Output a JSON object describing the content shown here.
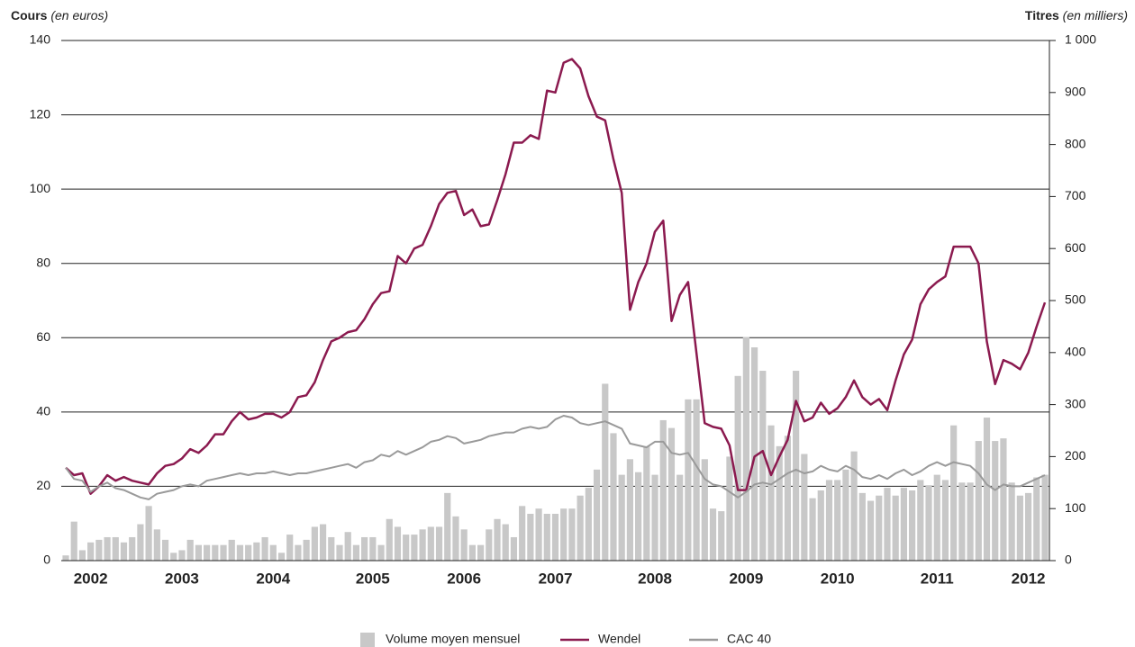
{
  "chart_data": {
    "type": "bar",
    "y_label": "Cours",
    "y_label_note": "(en euros)",
    "y2_label": "Titres",
    "y2_label_note": "(en milliers)",
    "categories": [
      null,
      null,
      null,
      "2002",
      null,
      null,
      null,
      null,
      null,
      null,
      null,
      null,
      null,
      null,
      "2003",
      null,
      null,
      null,
      null,
      null,
      null,
      null,
      null,
      null,
      null,
      "2004",
      null,
      null,
      null,
      null,
      null,
      null,
      null,
      null,
      null,
      null,
      null,
      "2005",
      null,
      null,
      null,
      null,
      null,
      null,
      null,
      null,
      null,
      null,
      "2006",
      null,
      null,
      null,
      null,
      null,
      null,
      null,
      null,
      null,
      null,
      "2007",
      null,
      null,
      null,
      null,
      null,
      null,
      null,
      null,
      null,
      null,
      null,
      "2008",
      null,
      null,
      null,
      null,
      null,
      null,
      null,
      null,
      null,
      null,
      "2009",
      null,
      null,
      null,
      null,
      null,
      null,
      null,
      null,
      null,
      null,
      "2010",
      null,
      null,
      null,
      null,
      null,
      null,
      null,
      null,
      null,
      null,
      null,
      "2011",
      null,
      null,
      null,
      null,
      null,
      null,
      null,
      null,
      null,
      null,
      "2012",
      null,
      null
    ],
    "series": [
      {
        "name": "Volume moyen mensuel",
        "type": "bar",
        "axis": "y2",
        "color": "#c8c8c8",
        "values": [
          10,
          75,
          20,
          35,
          40,
          45,
          45,
          35,
          45,
          70,
          105,
          60,
          40,
          15,
          20,
          40,
          30,
          30,
          30,
          30,
          40,
          30,
          30,
          35,
          45,
          30,
          15,
          50,
          30,
          40,
          65,
          70,
          45,
          30,
          55,
          30,
          45,
          45,
          30,
          80,
          65,
          50,
          50,
          60,
          65,
          65,
          130,
          85,
          60,
          30,
          30,
          60,
          80,
          70,
          45,
          105,
          90,
          100,
          90,
          90,
          100,
          100,
          125,
          140,
          175,
          340,
          245,
          165,
          195,
          170,
          220,
          165,
          270,
          255,
          165,
          310,
          310,
          195,
          100,
          95,
          200,
          355,
          430,
          410,
          365,
          260,
          220,
          240,
          365,
          205,
          120,
          135,
          155,
          155,
          175,
          210,
          130,
          115,
          125,
          140,
          125,
          140,
          135,
          155,
          145,
          165,
          155,
          260,
          150,
          150,
          230,
          275,
          230,
          235,
          150,
          125,
          130,
          160,
          165
        ]
      },
      {
        "name": "Wendel",
        "type": "line",
        "color": "#8b1a4f",
        "values": [
          25,
          23,
          23.5,
          18,
          20,
          23,
          21.5,
          22.5,
          21.5,
          21,
          20.5,
          23.5,
          25.5,
          26,
          27.5,
          30,
          29,
          31,
          34,
          34,
          37.5,
          40,
          38,
          38.5,
          39.5,
          39.5,
          38.5,
          40,
          44,
          44.5,
          48,
          54,
          59,
          60,
          61.5,
          62,
          65,
          69,
          72,
          72.5,
          82,
          80,
          84,
          85,
          90,
          96,
          99,
          99.5,
          93,
          94.5,
          90,
          90.5,
          97,
          104,
          112.5,
          112.5,
          114.5,
          113.5,
          126.5,
          126,
          134,
          135,
          132.5,
          125,
          119.5,
          118.5,
          108,
          99,
          67.5,
          75,
          80,
          88.5,
          91.5,
          64.5,
          71.5,
          75,
          56,
          37,
          36,
          35.5,
          31,
          19,
          19,
          28,
          29.5,
          23,
          28,
          32.5,
          43,
          37.5,
          38.5,
          42.5,
          39.5,
          41,
          44,
          48.5,
          44,
          42,
          43.5,
          40.5,
          48.5,
          55.5,
          59.5,
          69,
          73,
          75,
          76.5,
          84.5,
          84.5,
          84.5,
          80,
          59,
          47.5,
          54,
          53,
          51.5,
          56,
          63,
          69.5
        ]
      },
      {
        "name": "CAC 40",
        "type": "line",
        "color": "#9a9a9a",
        "values": [
          25,
          22,
          21.5,
          18.5,
          20,
          21,
          19.5,
          19,
          18,
          17,
          16.5,
          18,
          18.5,
          19,
          20,
          20.5,
          20,
          21.5,
          22,
          22.5,
          23,
          23.5,
          23,
          23.5,
          23.5,
          24,
          23.5,
          23,
          23.5,
          23.5,
          24,
          24.5,
          25,
          25.5,
          26,
          25,
          26.5,
          27,
          28.5,
          28,
          29.5,
          28.5,
          29.5,
          30.5,
          32,
          32.5,
          33.5,
          33,
          31.5,
          32,
          32.5,
          33.5,
          34,
          34.5,
          34.5,
          35.5,
          36,
          35.5,
          36,
          38,
          39,
          38.5,
          37,
          36.5,
          37,
          37.5,
          36.5,
          35.5,
          31.5,
          31,
          30.5,
          32,
          32,
          29,
          28.5,
          29,
          25.5,
          22,
          20.5,
          20,
          18.5,
          17,
          18.5,
          20.5,
          21,
          20.5,
          22,
          23.5,
          24.5,
          23.5,
          24,
          25.5,
          24.5,
          24,
          25.5,
          24.5,
          22.5,
          22,
          23,
          22,
          23.5,
          24.5,
          23,
          24,
          25.5,
          26.5,
          25.5,
          26.5,
          26,
          25.5,
          23.5,
          20.5,
          19,
          20.5,
          20,
          20,
          21,
          22,
          23
        ]
      }
    ],
    "ylim": [
      0,
      140
    ],
    "yticks": [
      0,
      20,
      40,
      60,
      80,
      100,
      120,
      140
    ],
    "y2lim": [
      0,
      1000
    ],
    "y2ticks": [
      0,
      100,
      200,
      300,
      400,
      500,
      600,
      700,
      800,
      900,
      {
        "value": 1000,
        "label": "1 000"
      }
    ],
    "grid": true,
    "legend": "bottom"
  }
}
